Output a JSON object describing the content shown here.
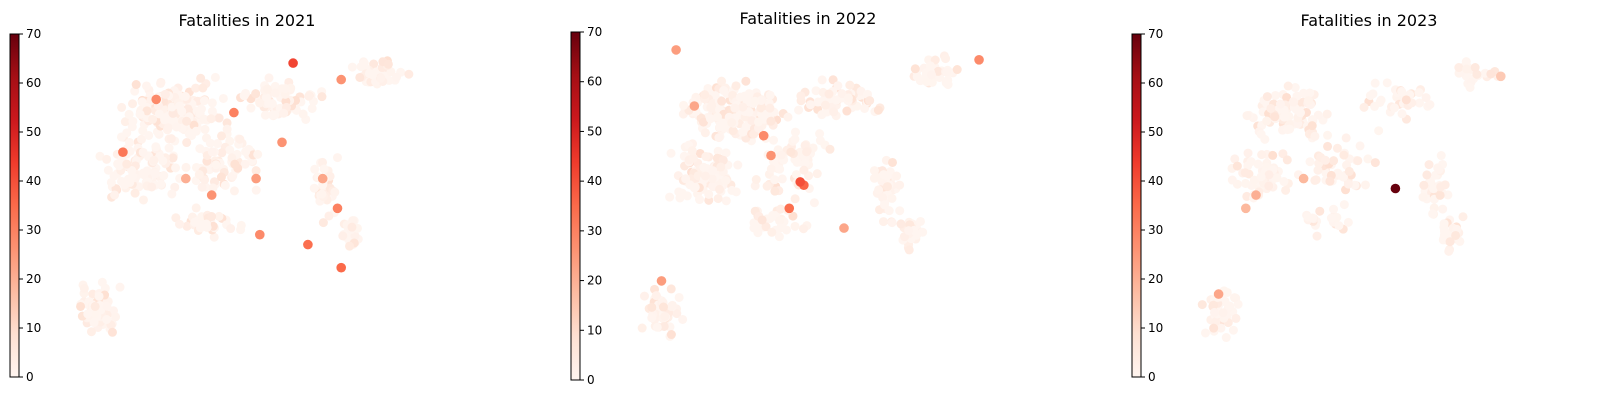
{
  "chart_data": [
    {
      "type": "scatter",
      "title": "Fatalities in 2021",
      "colorbar": {
        "range": [
          0,
          70
        ],
        "ticks": [
          0,
          10,
          20,
          30,
          40,
          50,
          60,
          70
        ],
        "colormap": "Reds"
      },
      "seed": 2021,
      "axis_visible": false,
      "highlights": [
        {
          "x": 0.54,
          "y": 0.41,
          "v": 28
        },
        {
          "x": 0.41,
          "y": 0.53,
          "v": 26
        },
        {
          "x": 0.53,
          "y": 0.58,
          "v": 24
        },
        {
          "x": 0.47,
          "y": 0.78,
          "v": 30
        },
        {
          "x": 0.67,
          "y": 0.38,
          "v": 34
        },
        {
          "x": 0.6,
          "y": 0.69,
          "v": 26
        },
        {
          "x": 0.75,
          "y": 0.49,
          "v": 30
        },
        {
          "x": 0.76,
          "y": 0.31,
          "v": 35
        },
        {
          "x": 0.63,
          "y": 0.93,
          "v": 42
        },
        {
          "x": 0.26,
          "y": 0.82,
          "v": 28
        },
        {
          "x": 0.17,
          "y": 0.66,
          "v": 32
        },
        {
          "x": 0.76,
          "y": 0.88,
          "v": 26
        },
        {
          "x": 0.34,
          "y": 0.58,
          "v": 20
        },
        {
          "x": 0.71,
          "y": 0.58,
          "v": 22
        }
      ]
    },
    {
      "type": "scatter",
      "title": "Fatalities in 2022",
      "colorbar": {
        "range": [
          0,
          70
        ],
        "ticks": [
          0,
          10,
          20,
          30,
          40,
          50,
          60,
          70
        ],
        "colormap": "Reds"
      },
      "seed": 2022,
      "axis_visible": false,
      "highlights": [
        {
          "x": 0.49,
          "y": 0.56,
          "v": 36
        },
        {
          "x": 0.45,
          "y": 0.49,
          "v": 34
        },
        {
          "x": 0.48,
          "y": 0.57,
          "v": 40
        },
        {
          "x": 0.38,
          "y": 0.71,
          "v": 28
        },
        {
          "x": 0.4,
          "y": 0.65,
          "v": 26
        },
        {
          "x": 0.6,
          "y": 0.43,
          "v": 22
        },
        {
          "x": 0.14,
          "y": 0.97,
          "v": 24
        },
        {
          "x": 0.19,
          "y": 0.8,
          "v": 22
        },
        {
          "x": 0.97,
          "y": 0.94,
          "v": 28
        },
        {
          "x": 0.1,
          "y": 0.27,
          "v": 24
        }
      ]
    },
    {
      "type": "scatter",
      "title": "Fatalities in 2023",
      "colorbar": {
        "range": [
          0,
          70
        ],
        "ticks": [
          0,
          10,
          20,
          30,
          40,
          50,
          60,
          70
        ],
        "colormap": "Reds"
      },
      "seed": 2023,
      "axis_visible": false,
      "highlights": [
        {
          "x": 0.61,
          "y": 0.55,
          "v": 70
        },
        {
          "x": 0.2,
          "y": 0.53,
          "v": 20
        },
        {
          "x": 0.17,
          "y": 0.49,
          "v": 18
        },
        {
          "x": 0.09,
          "y": 0.23,
          "v": 22
        },
        {
          "x": 0.34,
          "y": 0.58,
          "v": 18
        },
        {
          "x": 0.92,
          "y": 0.89,
          "v": 14
        }
      ]
    }
  ]
}
